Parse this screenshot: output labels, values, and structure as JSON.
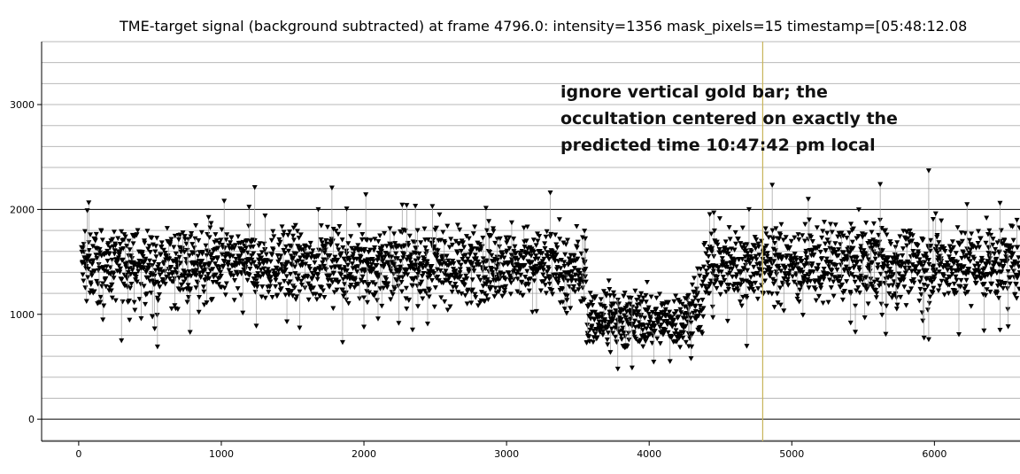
{
  "chart_data": {
    "type": "scatter",
    "title": "TME-target signal (background subtracted) at frame 4796.0: intensity=1356 mask_pixels=15 timestamp=[05:48:12.08",
    "xlabel": "",
    "ylabel": "",
    "xlim": [
      -260,
      6600
    ],
    "ylim": [
      -210,
      3600
    ],
    "x_ticks": [
      0,
      1000,
      2000,
      3000,
      4000,
      5000,
      6000
    ],
    "y_ticks": [
      0,
      1000,
      2000,
      3000
    ],
    "grid": true,
    "marker": "down-triangle",
    "marker_color": "#000000",
    "cursor_line": {
      "x": 4796,
      "color": "#c8b45a"
    },
    "annotation": {
      "lines": [
        "ignore vertical gold bar; the",
        "occultation centered on exactly the",
        "predicted time 10:47:42 pm local"
      ]
    },
    "series": [
      {
        "segments": [
          {
            "x_start": 20,
            "x_end": 3550,
            "mean": 1470,
            "spread": 190
          },
          {
            "x_start": 3550,
            "x_end": 4350,
            "mean": 950,
            "spread": 150
          },
          {
            "x_start": 4350,
            "x_end": 6600,
            "mean": 1480,
            "spread": 200
          }
        ],
        "outliers": [
          {
            "x": 60,
            "y": 1990
          },
          {
            "x": 300,
            "y": 750
          },
          {
            "x": 1020,
            "y": 2080
          },
          {
            "x": 1460,
            "y": 930
          },
          {
            "x": 1680,
            "y": 2000
          },
          {
            "x": 2000,
            "y": 880
          },
          {
            "x": 2300,
            "y": 2040
          },
          {
            "x": 2480,
            "y": 2030
          },
          {
            "x": 3780,
            "y": 480
          },
          {
            "x": 3880,
            "y": 490
          },
          {
            "x": 4700,
            "y": 2000
          },
          {
            "x": 5620,
            "y": 2240
          },
          {
            "x": 5960,
            "y": 2370
          },
          {
            "x": 5960,
            "y": 760
          },
          {
            "x": 6460,
            "y": 2060
          },
          {
            "x": 6460,
            "y": 850
          }
        ]
      }
    ]
  }
}
